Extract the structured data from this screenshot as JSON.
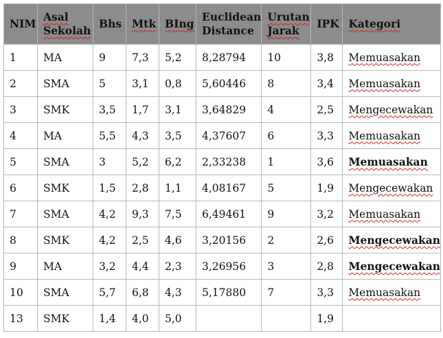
{
  "table": {
    "headers": [
      {
        "lines": [
          "NIM"
        ],
        "underline": false
      },
      {
        "lines": [
          "Asal",
          "Sekolah"
        ],
        "underline": true
      },
      {
        "lines": [
          "Bhs"
        ],
        "underline": false
      },
      {
        "lines": [
          "Mtk"
        ],
        "underline": true
      },
      {
        "lines": [
          "BIng"
        ],
        "underline": true
      },
      {
        "lines": [
          "Euclidean",
          "Distance"
        ],
        "underline": false
      },
      {
        "lines": [
          "Urutan",
          "Jarak"
        ],
        "underline": true
      },
      {
        "lines": [
          "IPK"
        ],
        "underline": false
      },
      {
        "lines": [
          "Kategori"
        ],
        "underline": true
      }
    ],
    "rows": [
      {
        "nim": "1",
        "asal": "MA",
        "bhs": "9",
        "mtk": "7,3",
        "bing": "5,2",
        "distance": "8,28794",
        "urutan": "10",
        "ipk": "3,8",
        "kategori": "Memuasakan",
        "bold": false
      },
      {
        "nim": "2",
        "asal": "SMA",
        "bhs": "5",
        "mtk": "3,1",
        "bing": "0,8",
        "distance": "5,60446",
        "urutan": "8",
        "ipk": "3,4",
        "kategori": "Memuasakan",
        "bold": false
      },
      {
        "nim": "3",
        "asal": "SMK",
        "bhs": "3,5",
        "mtk": "1,7",
        "bing": "3,1",
        "distance": "3,64829",
        "urutan": "4",
        "ipk": "2,5",
        "kategori": "Mengecewakan",
        "bold": false
      },
      {
        "nim": "4",
        "asal": "MA",
        "bhs": "5,5",
        "mtk": "4,3",
        "bing": "3,5",
        "distance": "4,37607",
        "urutan": "6",
        "ipk": "3,3",
        "kategori": "Memuasakan",
        "bold": false
      },
      {
        "nim": "5",
        "asal": "SMA",
        "bhs": "3",
        "mtk": "5,2",
        "bing": "6,2",
        "distance": "2,33238",
        "urutan": "1",
        "ipk": "3,6",
        "kategori": "Memuasakan",
        "bold": true
      },
      {
        "nim": "6",
        "asal": "SMK",
        "bhs": "1,5",
        "mtk": "2,8",
        "bing": "1,1",
        "distance": "4,08167",
        "urutan": "5",
        "ipk": "1,9",
        "kategori": "Mengecewakan",
        "bold": false
      },
      {
        "nim": "7",
        "asal": "SMA",
        "bhs": "4,2",
        "mtk": "9,3",
        "bing": "7,5",
        "distance": "6,49461",
        "urutan": "9",
        "ipk": "3,2",
        "kategori": "Memuasakan",
        "bold": false
      },
      {
        "nim": "8",
        "asal": "SMK",
        "bhs": "4,2",
        "mtk": "2,5",
        "bing": "4,6",
        "distance": "3,20156",
        "urutan": "2",
        "ipk": "2,6",
        "kategori": "Mengecewakan",
        "bold": true
      },
      {
        "nim": "9",
        "asal": "MA",
        "bhs": "3,2",
        "mtk": "4,4",
        "bing": "2,3",
        "distance": "3,26956",
        "urutan": "3",
        "ipk": "2,8",
        "kategori": "Mengecewakan",
        "bold": true
      },
      {
        "nim": "10",
        "asal": "SMA",
        "bhs": "5,7",
        "mtk": "6,8",
        "bing": "4,3",
        "distance": "5,17880",
        "urutan": "7",
        "ipk": "3,3",
        "kategori": "Memuasakan",
        "bold": false
      },
      {
        "nim": "13",
        "asal": "SMK",
        "bhs": "1,4",
        "mtk": "4,0",
        "bing": "5,0",
        "distance": "",
        "urutan": "",
        "ipk": "1,9",
        "kategori": "",
        "bold": false
      }
    ]
  },
  "colors": {
    "header_bg": "#8c8c8c",
    "border": "#b7b7b7",
    "spell_underline": "#d02020"
  }
}
